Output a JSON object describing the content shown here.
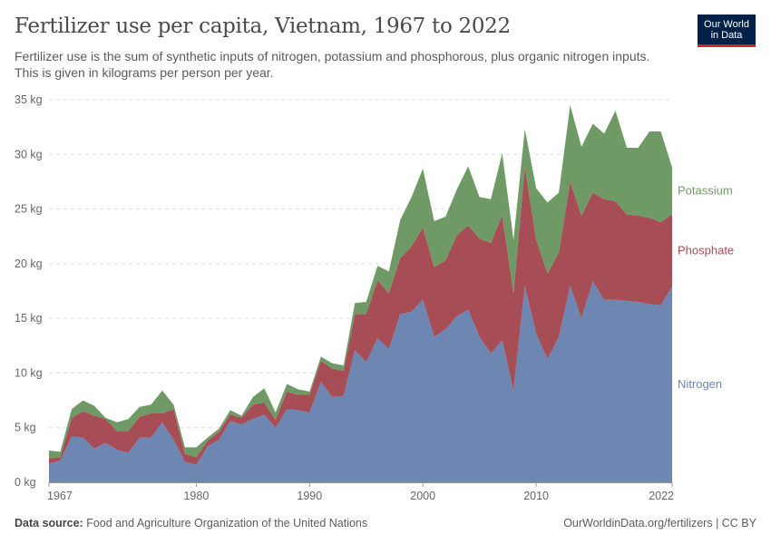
{
  "header": {
    "title": "Fertilizer use per capita, Vietnam, 1967 to 2022",
    "subtitle": "Fertilizer use is the sum of synthetic inputs of nitrogen, potassium and phosphorous, plus organic nitrogen inputs. This is given in kilograms per person per year."
  },
  "logo": {
    "line1": "Our World",
    "line2": "in Data"
  },
  "footer": {
    "source_label": "Data source:",
    "source_text": "Food and Agriculture Organization of the United Nations",
    "url_text": "OurWorldinData.org/fertilizers | CC BY"
  },
  "colors": {
    "nitrogen": "#6d86b2",
    "phosphate": "#a64d55",
    "potassium": "#6f9a66"
  },
  "chart_data": {
    "type": "area",
    "stacked": true,
    "x": [
      1967,
      1968,
      1969,
      1970,
      1971,
      1972,
      1973,
      1974,
      1975,
      1976,
      1977,
      1978,
      1979,
      1980,
      1981,
      1982,
      1983,
      1984,
      1985,
      1986,
      1987,
      1988,
      1989,
      1990,
      1991,
      1992,
      1993,
      1994,
      1995,
      1996,
      1997,
      1998,
      1999,
      2000,
      2001,
      2002,
      2003,
      2004,
      2005,
      2006,
      2007,
      2008,
      2009,
      2010,
      2011,
      2012,
      2013,
      2014,
      2015,
      2016,
      2017,
      2018,
      2019,
      2020,
      2021,
      2022
    ],
    "series": [
      {
        "name": "Nitrogen",
        "values": [
          1.7,
          2.0,
          4.2,
          4.1,
          3.1,
          3.6,
          3.0,
          2.7,
          4.1,
          4.1,
          5.5,
          3.9,
          1.9,
          1.6,
          3.3,
          3.9,
          5.6,
          5.3,
          5.8,
          6.2,
          5.0,
          6.7,
          6.6,
          6.4,
          9.2,
          7.8,
          7.9,
          12.1,
          11.0,
          13.2,
          12.2,
          15.4,
          15.6,
          16.7,
          13.3,
          14.0,
          15.2,
          15.8,
          13.3,
          11.8,
          13.0,
          8.4,
          18.0,
          13.6,
          11.3,
          13.3,
          18.0,
          15.0,
          18.4,
          16.7,
          16.7,
          16.6,
          16.5,
          16.3,
          16.2,
          17.9
        ]
      },
      {
        "name": "Phosphate",
        "values": [
          0.5,
          0.3,
          1.7,
          2.4,
          3.0,
          2.2,
          1.7,
          2.0,
          1.9,
          2.2,
          0.8,
          2.8,
          0.7,
          0.7,
          0.5,
          0.7,
          0.6,
          0.6,
          1.3,
          1.1,
          0.7,
          1.6,
          1.4,
          1.6,
          1.9,
          2.6,
          2.3,
          3.3,
          4.4,
          5.3,
          5.1,
          5.1,
          6.0,
          6.6,
          6.4,
          6.3,
          7.4,
          7.7,
          9.0,
          10.1,
          11.4,
          8.9,
          10.8,
          8.6,
          7.8,
          7.7,
          9.5,
          9.4,
          8.1,
          9.2,
          9.0,
          7.9,
          7.9,
          7.9,
          7.6,
          6.6
        ]
      },
      {
        "name": "Potassium",
        "values": [
          0.7,
          0.5,
          0.8,
          1.0,
          0.9,
          0.1,
          0.8,
          1.1,
          0.9,
          0.8,
          2.1,
          0.4,
          0.6,
          0.9,
          0.3,
          0.3,
          0.4,
          0.2,
          0.7,
          1.3,
          0.7,
          0.7,
          0.5,
          0.3,
          0.4,
          0.5,
          0.5,
          1.0,
          1.1,
          1.3,
          2.0,
          3.5,
          4.5,
          5.4,
          4.2,
          4.0,
          4.2,
          5.4,
          3.8,
          4.0,
          5.7,
          4.9,
          3.5,
          4.7,
          6.5,
          5.5,
          7.0,
          6.3,
          6.3,
          6.0,
          8.3,
          6.1,
          6.2,
          7.9,
          8.3,
          4.3
        ]
      }
    ],
    "y_ticks": [
      "0 kg",
      "5 kg",
      "10 kg",
      "15 kg",
      "20 kg",
      "25 kg",
      "30 kg",
      "35 kg"
    ],
    "x_ticks": [
      "1967",
      "1980",
      "1990",
      "2000",
      "2010",
      "2022"
    ],
    "ylim": [
      0,
      35
    ],
    "grid": "horizontal-dashed",
    "legend": "right-inline"
  }
}
